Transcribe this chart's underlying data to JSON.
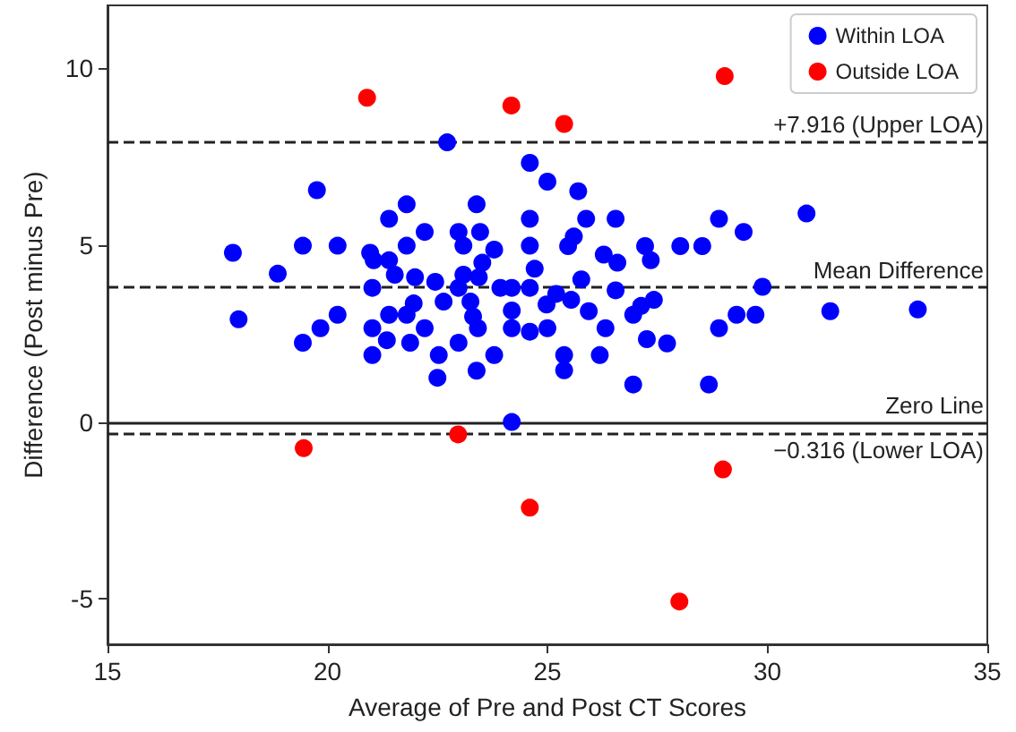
{
  "chart_data": {
    "type": "scatter",
    "xlabel": "Average of Pre and Post CT Scores",
    "ylabel": "Difference (Post minus Pre)",
    "xlim": [
      15,
      35
    ],
    "xticks": [
      15,
      20,
      25,
      30,
      35
    ],
    "ylim": [
      -6.28,
      11.77
    ],
    "yticks": [
      -5,
      0,
      5,
      10
    ],
    "grid": false,
    "legend": "top right",
    "marker": "circle",
    "series": [
      {
        "name": "Within LOA",
        "color": "#0000ff",
        "x": [
          22.72,
          24.6,
          25.0,
          19.76,
          21.8,
          21.4,
          23.39,
          24.6,
          22.21,
          22.98,
          23.47,
          17.85,
          19.44,
          20.23,
          20.97,
          21.8,
          23.09,
          24.6,
          23.79,
          21.05,
          21.4,
          23.52,
          18.87,
          21.53,
          21.99,
          23.09,
          23.44,
          24.71,
          21.02,
          22.45,
          22.98,
          23.93,
          24.19,
          24.6,
          25.2,
          17.98,
          20.23,
          21.4,
          21.8,
          21.96,
          22.64,
          23.25,
          24.19,
          24.98,
          23.31,
          19.84,
          21.02,
          22.21,
          23.42,
          24.19,
          24.6,
          25.0,
          19.44,
          21.35,
          21.88,
          22.98,
          22.53,
          23.79,
          21.02,
          22.5,
          23.39,
          24.19,
          25.7,
          25.88,
          26.55,
          25.6,
          25.47,
          26.28,
          26.59,
          27.22,
          27.35,
          28.02,
          28.52,
          28.9,
          29.46,
          30.89,
          25.77,
          26.55,
          25.54,
          25.94,
          27.42,
          27.13,
          26.95,
          29.3,
          29.73,
          29.89,
          31.43,
          33.42,
          26.32,
          28.9,
          27.26,
          27.72,
          26.19,
          25.38,
          25.38,
          26.95,
          28.67
        ],
        "values": [
          7.9,
          7.32,
          6.79,
          6.55,
          6.15,
          5.74,
          6.15,
          5.74,
          5.37,
          5.37,
          5.37,
          4.78,
          4.98,
          4.98,
          4.78,
          4.98,
          4.98,
          4.98,
          4.87,
          4.57,
          4.57,
          4.5,
          4.19,
          4.16,
          4.09,
          4.16,
          4.09,
          4.33,
          3.79,
          3.96,
          3.79,
          3.79,
          3.79,
          3.79,
          3.62,
          2.9,
          3.03,
          3.03,
          3.03,
          3.35,
          3.4,
          3.4,
          3.15,
          3.32,
          2.98,
          2.65,
          2.65,
          2.65,
          2.65,
          2.65,
          2.55,
          2.65,
          2.24,
          2.31,
          2.24,
          2.24,
          1.89,
          1.89,
          1.89,
          1.25,
          1.45,
          0.0,
          6.52,
          5.74,
          5.74,
          5.24,
          4.97,
          4.73,
          4.5,
          4.97,
          4.57,
          4.97,
          4.97,
          5.74,
          5.37,
          5.89,
          4.03,
          3.72,
          3.45,
          3.13,
          3.45,
          3.28,
          3.03,
          3.03,
          3.03,
          3.82,
          3.13,
          3.18,
          2.65,
          2.65,
          2.34,
          2.22,
          1.89,
          1.89,
          1.46,
          1.06,
          1.06
        ]
      },
      {
        "name": "Outside LOA",
        "color": "#ff0000",
        "x": [
          20.9,
          24.18,
          25.38,
          29.03,
          19.46,
          22.97,
          24.6,
          28.99,
          28.0
        ],
        "values": [
          9.16,
          8.94,
          8.42,
          9.77,
          -0.74,
          -0.35,
          -2.42,
          -1.34,
          -5.07
        ]
      }
    ],
    "ref_lines": [
      {
        "axis": "y",
        "value": 7.916,
        "label": "+7.916 (Upper LOA)",
        "line_style": "dashed"
      },
      {
        "axis": "y",
        "value": 3.8,
        "label": "Mean Difference",
        "line_style": "dashed"
      },
      {
        "axis": "y",
        "value": 0,
        "label": "Zero Line",
        "line_style": "solid"
      },
      {
        "axis": "y",
        "value": -0.316,
        "label": "−0.316 (Lower LOA)",
        "line_style": "dashed"
      }
    ]
  }
}
